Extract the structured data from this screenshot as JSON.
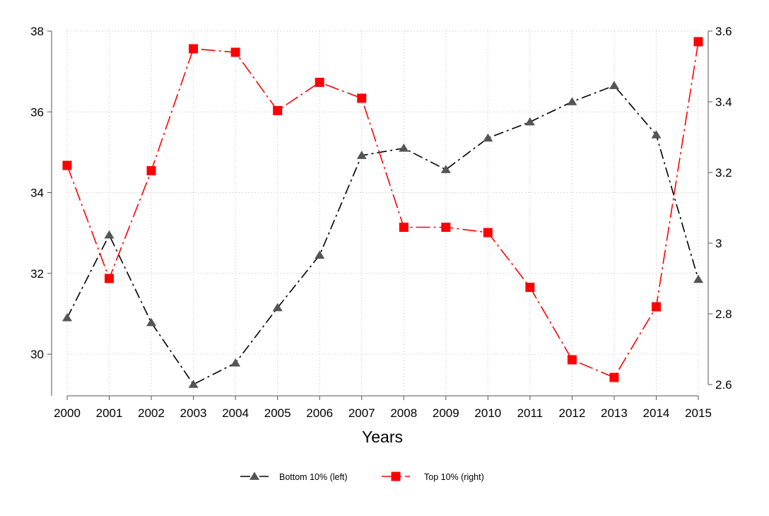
{
  "chart_data": {
    "type": "line",
    "xlabel": "Years",
    "categories": [
      "2000",
      "2001",
      "2002",
      "2003",
      "2004",
      "2005",
      "2006",
      "2007",
      "2008",
      "2009",
      "2010",
      "2011",
      "2012",
      "2013",
      "2014",
      "2015"
    ],
    "y_left": {
      "ylim": [
        29.0,
        38.0
      ],
      "ticks": [
        30,
        32,
        34,
        36,
        38
      ],
      "tick_labels": [
        "30",
        "32",
        "34",
        "36",
        "38"
      ]
    },
    "y_right": {
      "ylim": [
        2.6,
        3.6
      ],
      "ticks": [
        2.6,
        2.8,
        3.0,
        3.2,
        3.4,
        3.6
      ],
      "tick_labels": [
        "2.6",
        "2.8",
        "3",
        "3.2",
        "3.4",
        "3.6"
      ]
    },
    "grid": true,
    "legend": "bottom",
    "series": [
      {
        "name": "Bottom 10% (left)",
        "axis": "left",
        "color": "#555555",
        "marker": "triangle",
        "values": [
          30.9,
          32.95,
          30.78,
          29.25,
          29.78,
          31.15,
          32.45,
          34.92,
          35.1,
          34.57,
          35.35,
          35.75,
          36.25,
          36.65,
          35.43,
          31.85
        ]
      },
      {
        "name": "Top 10% (right)",
        "axis": "right",
        "color": "#ff0000",
        "marker": "square",
        "values": [
          3.22,
          2.9,
          3.205,
          3.55,
          3.54,
          3.375,
          3.455,
          3.41,
          3.045,
          3.045,
          3.03,
          2.875,
          2.67,
          2.62,
          2.82,
          3.57
        ]
      }
    ]
  }
}
